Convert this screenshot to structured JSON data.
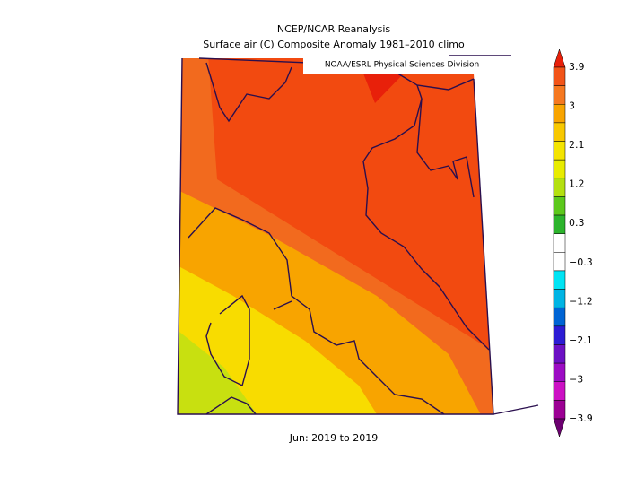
{
  "title": [
    "NCEP/NCAR Reanalysis",
    "Surface air (C) Composite Anomaly 1981–2010 climo"
  ],
  "credit": "NOAA/ESRL Physical Sciences Division",
  "footer": "Jun: 2019 to 2019",
  "colorbar": {
    "labels": [
      "3.9",
      "3",
      "2.1",
      "1.2",
      "0.3",
      "−0.3",
      "−1.2",
      "−2.1",
      "−3",
      "−3.9"
    ],
    "colors": [
      "#e8200a",
      "#f25418",
      "#f57820",
      "#f8a400",
      "#f8c800",
      "#f4e400",
      "#e8ec00",
      "#b4e010",
      "#5cc81c",
      "#2cb42c",
      "#ffffff",
      "#ffffff",
      "#00e4f4",
      "#00b4e4",
      "#0064d4",
      "#2c1cd4",
      "#6c10c4",
      "#9c0cc4",
      "#cc10c4",
      "#9c0094",
      "#6c0070"
    ]
  }
}
